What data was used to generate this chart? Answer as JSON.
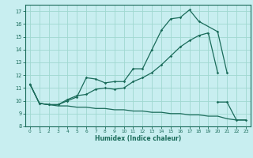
{
  "xlabel": "Humidex (Indice chaleur)",
  "bg_color": "#c8eef0",
  "grid_color": "#a0d8d0",
  "line_color": "#1a6b5a",
  "xlim": [
    -0.5,
    23.5
  ],
  "ylim": [
    8,
    17.5
  ],
  "yticks": [
    8,
    9,
    10,
    11,
    12,
    13,
    14,
    15,
    16,
    17
  ],
  "xticks": [
    0,
    1,
    2,
    3,
    4,
    5,
    6,
    7,
    8,
    9,
    10,
    11,
    12,
    13,
    14,
    15,
    16,
    17,
    18,
    19,
    20,
    21,
    22,
    23
  ],
  "line1_x": [
    0,
    1,
    2,
    3,
    4,
    5,
    6,
    7,
    8,
    9,
    10,
    11,
    12,
    13,
    14,
    15,
    16,
    17,
    18,
    20,
    21
  ],
  "line1_y": [
    11.3,
    9.8,
    9.7,
    9.7,
    10.0,
    10.3,
    11.8,
    11.7,
    11.4,
    11.5,
    11.5,
    12.5,
    12.5,
    14.0,
    15.5,
    16.4,
    16.5,
    17.1,
    16.2,
    15.4,
    12.2
  ],
  "line2_x": [
    0,
    1,
    2,
    3,
    4,
    5,
    6,
    7,
    8,
    9,
    10,
    11,
    12,
    13,
    14,
    15,
    16,
    17,
    18,
    19,
    20
  ],
  "line2_y": [
    11.3,
    9.8,
    9.7,
    9.7,
    10.1,
    10.4,
    10.5,
    10.9,
    11.0,
    10.9,
    11.0,
    11.5,
    11.8,
    12.2,
    12.8,
    13.5,
    14.2,
    14.7,
    15.1,
    15.3,
    12.2
  ],
  "line3_x": [
    0,
    1,
    2,
    3,
    4,
    5,
    6,
    7,
    8,
    9,
    10,
    11,
    12,
    13,
    14,
    15,
    16,
    17,
    18,
    19,
    20,
    21,
    22,
    23
  ],
  "line3_y": [
    11.3,
    9.8,
    9.7,
    9.6,
    9.6,
    9.5,
    9.5,
    9.4,
    9.4,
    9.3,
    9.3,
    9.2,
    9.2,
    9.1,
    9.1,
    9.0,
    9.0,
    8.9,
    8.9,
    8.8,
    8.8,
    8.6,
    8.5,
    8.5
  ],
  "line4_x": [
    20,
    21,
    22,
    23
  ],
  "line4_y": [
    9.9,
    9.9,
    8.5,
    8.5
  ]
}
